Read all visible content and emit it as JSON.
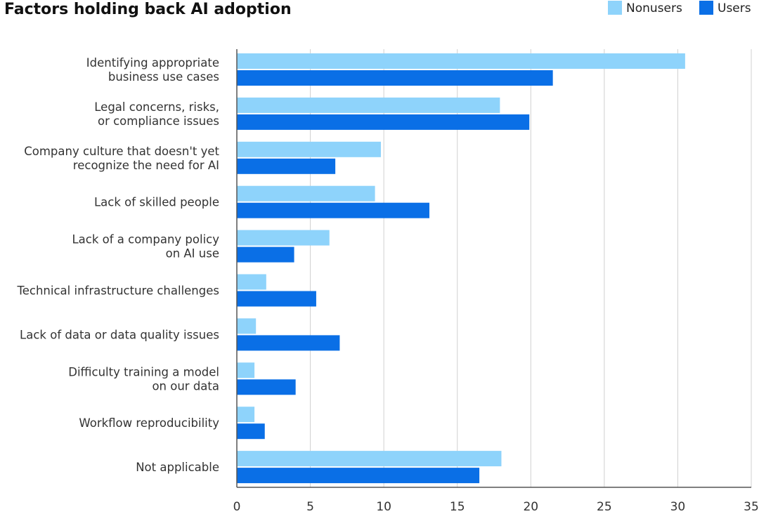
{
  "chart_data": {
    "type": "bar",
    "orientation": "horizontal",
    "title": "Factors holding back AI adoption",
    "xlabel": "",
    "ylabel": "",
    "xlim": [
      0,
      35
    ],
    "xticks": [
      "0",
      "5",
      "10",
      "15",
      "20",
      "25",
      "30",
      "35"
    ],
    "grid": true,
    "legend_position": "top-right",
    "categories": [
      [
        "Identifying appropriate",
        "business use cases"
      ],
      [
        "Legal concerns, risks,",
        "or compliance issues"
      ],
      [
        "Company culture that doesn't yet",
        "recognize the need for AI"
      ],
      [
        "Lack of skilled people"
      ],
      [
        "Lack of a company policy",
        "on AI use"
      ],
      [
        "Technical infrastructure challenges"
      ],
      [
        "Lack of data or data quality issues"
      ],
      [
        "Difficulty training a model",
        "on our data"
      ],
      [
        "Workflow reproducibility"
      ],
      [
        "Not applicable"
      ]
    ],
    "series": [
      {
        "name": "Nonusers",
        "color": "#8ed3fb",
        "values": [
          30.5,
          17.9,
          9.8,
          9.4,
          6.3,
          2.0,
          1.3,
          1.2,
          1.2,
          18.0
        ]
      },
      {
        "name": "Users",
        "color": "#0a6fe6",
        "values": [
          21.5,
          19.9,
          6.7,
          13.1,
          3.9,
          5.4,
          7.0,
          4.0,
          1.9,
          16.5
        ]
      }
    ]
  }
}
